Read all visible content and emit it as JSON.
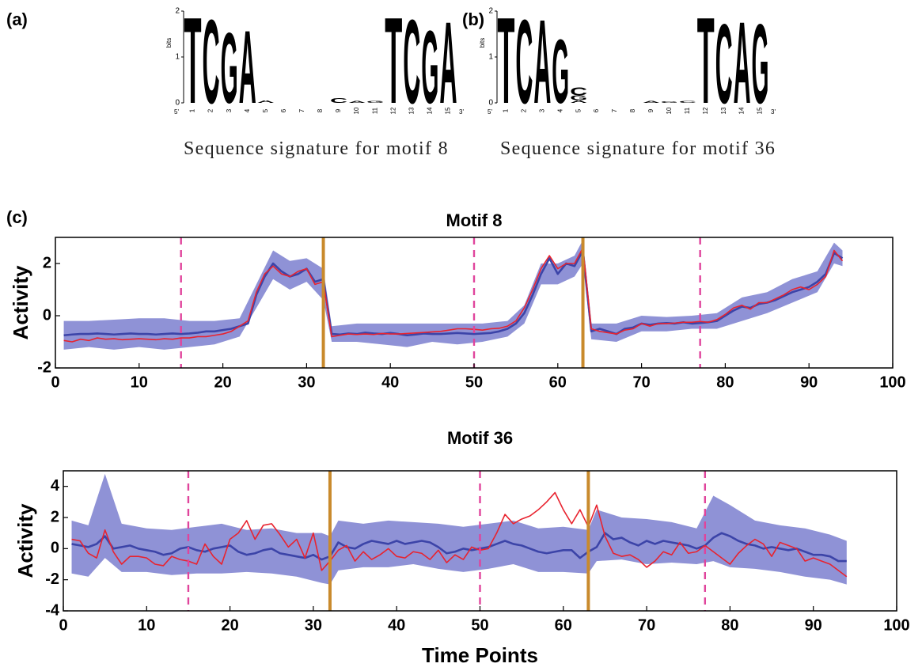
{
  "chart_data": [
    {
      "type": "logo",
      "panel_label": "(a)",
      "ylabel": "bits",
      "ylim": [
        0,
        2
      ],
      "yticks": [
        0,
        1,
        2
      ],
      "positions": [
        1,
        2,
        3,
        4,
        5,
        6,
        7,
        8,
        9,
        10,
        11,
        12,
        13,
        14,
        15
      ],
      "ends": [
        "5'",
        "3'"
      ],
      "letter_colors": {
        "A": "#1aa24a",
        "C": "#2f3b9c",
        "G": "#f5a623",
        "T": "#e8202a"
      },
      "stacks": [
        [
          {
            "letter": "T",
            "height": 1.95
          }
        ],
        [
          {
            "letter": "C",
            "height": 1.9
          }
        ],
        [
          {
            "letter": "G",
            "height": 1.6
          }
        ],
        [
          {
            "letter": "A",
            "height": 1.65
          }
        ],
        [
          {
            "letter": "A",
            "height": 0.06
          }
        ],
        [],
        [],
        [],
        [
          {
            "letter": "C",
            "height": 0.1
          }
        ],
        [
          {
            "letter": "A",
            "height": 0.05
          }
        ],
        [
          {
            "letter": "G",
            "height": 0.05
          }
        ],
        [
          {
            "letter": "T",
            "height": 1.95
          }
        ],
        [
          {
            "letter": "C",
            "height": 1.9
          }
        ],
        [
          {
            "letter": "G",
            "height": 1.65
          }
        ],
        [
          {
            "letter": "A",
            "height": 1.85
          }
        ]
      ],
      "caption": "Sequence signature for motif 8"
    },
    {
      "type": "logo",
      "panel_label": "(b)",
      "ylabel": "bits",
      "ylim": [
        0,
        2
      ],
      "yticks": [
        0,
        1,
        2
      ],
      "positions": [
        1,
        2,
        3,
        4,
        5,
        6,
        7,
        8,
        9,
        10,
        11,
        12,
        13,
        14,
        15
      ],
      "ends": [
        "5'",
        "3'"
      ],
      "letter_colors": {
        "A": "#1aa24a",
        "C": "#2f3b9c",
        "G": "#f5a623",
        "T": "#e8202a"
      },
      "stacks": [
        [
          {
            "letter": "T",
            "height": 1.95
          }
        ],
        [
          {
            "letter": "C",
            "height": 1.9
          }
        ],
        [
          {
            "letter": "A",
            "height": 1.9
          }
        ],
        [
          {
            "letter": "G",
            "height": 1.45
          }
        ],
        [
          {
            "letter": "A",
            "height": 0.06
          },
          {
            "letter": "G",
            "height": 0.1
          },
          {
            "letter": "C",
            "height": 0.18
          }
        ],
        [],
        [],
        [],
        [
          {
            "letter": "A",
            "height": 0.04
          }
        ],
        [
          {
            "letter": "G",
            "height": 0.03
          }
        ],
        [
          {
            "letter": "C",
            "height": 0.04
          }
        ],
        [
          {
            "letter": "T",
            "height": 1.95
          }
        ],
        [
          {
            "letter": "C",
            "height": 1.8
          }
        ],
        [
          {
            "letter": "A",
            "height": 1.85
          }
        ],
        [
          {
            "letter": "G",
            "height": 1.8
          }
        ]
      ],
      "caption": "Sequence signature for motif 36"
    },
    {
      "type": "line",
      "panel_label": "(c)",
      "title": "Motif 8",
      "ylabel": "Activity",
      "xlim": [
        0,
        100
      ],
      "xticks": [
        0,
        10,
        20,
        30,
        40,
        50,
        60,
        70,
        80,
        90,
        100
      ],
      "ylim": [
        -2,
        3
      ],
      "yticks": [
        -2,
        0,
        2
      ],
      "x": [
        1,
        2,
        3,
        4,
        5,
        6,
        7,
        8,
        9,
        10,
        11,
        12,
        13,
        14,
        15,
        16,
        17,
        18,
        19,
        20,
        21,
        22,
        23,
        24,
        25,
        26,
        27,
        28,
        29,
        30,
        31,
        32,
        33,
        34,
        35,
        36,
        37,
        38,
        39,
        40,
        41,
        42,
        43,
        44,
        45,
        46,
        47,
        48,
        49,
        50,
        51,
        52,
        53,
        54,
        55,
        56,
        57,
        58,
        59,
        60,
        61,
        62,
        63,
        64,
        65,
        66,
        67,
        68,
        69,
        70,
        71,
        72,
        73,
        74,
        75,
        76,
        77,
        78,
        79,
        80,
        81,
        82,
        83,
        84,
        85,
        86,
        87,
        88,
        89,
        90,
        91,
        92,
        93,
        94
      ],
      "band": {
        "color": "#8f92d6",
        "x": [
          1,
          4,
          7,
          10,
          13,
          16,
          19,
          22,
          24,
          26,
          28,
          30,
          32,
          33,
          36,
          39,
          42,
          45,
          48,
          51,
          54,
          56,
          58,
          60,
          62,
          63,
          64,
          67,
          70,
          73,
          76,
          79,
          82,
          85,
          88,
          91,
          93,
          94
        ],
        "lower": [
          -1.3,
          -1.2,
          -1.3,
          -1.2,
          -1.3,
          -1.2,
          -1.1,
          -0.8,
          0.3,
          1.4,
          1.0,
          1.3,
          0.6,
          -1.0,
          -1.0,
          -1.1,
          -1.2,
          -1.0,
          -1.1,
          -1.0,
          -0.8,
          -0.3,
          1.2,
          1.2,
          1.5,
          2.0,
          -0.9,
          -1.0,
          -0.6,
          -0.6,
          -0.5,
          -0.5,
          -0.2,
          0.1,
          0.5,
          0.9,
          2.0,
          1.9
        ],
        "upper": [
          -0.2,
          -0.2,
          -0.15,
          -0.1,
          -0.1,
          -0.2,
          -0.2,
          -0.1,
          1.2,
          2.5,
          2.1,
          2.2,
          1.8,
          -0.4,
          -0.3,
          -0.3,
          -0.3,
          -0.3,
          -0.3,
          -0.3,
          -0.2,
          0.4,
          2.0,
          2.0,
          2.3,
          2.9,
          -0.3,
          -0.3,
          0.0,
          -0.05,
          0.0,
          0.1,
          0.7,
          0.9,
          1.4,
          1.7,
          2.8,
          2.5
        ]
      },
      "series": [
        {
          "color": "#3c44a8",
          "values": [
            -0.75,
            -0.72,
            -0.7,
            -0.7,
            -0.68,
            -0.7,
            -0.72,
            -0.7,
            -0.68,
            -0.7,
            -0.7,
            -0.72,
            -0.7,
            -0.68,
            -0.7,
            -0.68,
            -0.65,
            -0.6,
            -0.6,
            -0.55,
            -0.5,
            -0.4,
            -0.3,
            0.8,
            1.5,
            2.0,
            1.7,
            1.5,
            1.6,
            1.8,
            1.3,
            1.4,
            -0.7,
            -0.72,
            -0.68,
            -0.7,
            -0.65,
            -0.68,
            -0.7,
            -0.66,
            -0.7,
            -0.75,
            -0.72,
            -0.68,
            -0.7,
            -0.7,
            -0.68,
            -0.66,
            -0.68,
            -0.7,
            -0.68,
            -0.66,
            -0.6,
            -0.5,
            -0.3,
            0.1,
            0.8,
            1.6,
            2.2,
            1.6,
            2.0,
            1.9,
            2.5,
            -0.6,
            -0.5,
            -0.6,
            -0.7,
            -0.5,
            -0.45,
            -0.3,
            -0.35,
            -0.3,
            -0.28,
            -0.3,
            -0.25,
            -0.3,
            -0.28,
            -0.25,
            -0.2,
            0.0,
            0.2,
            0.35,
            0.3,
            0.45,
            0.5,
            0.6,
            0.75,
            0.9,
            1.0,
            1.1,
            1.3,
            1.6,
            2.4,
            2.2
          ]
        },
        {
          "color": "#e8232f",
          "values": [
            -0.95,
            -1.0,
            -0.9,
            -0.95,
            -0.85,
            -0.9,
            -0.88,
            -0.92,
            -0.9,
            -0.88,
            -0.9,
            -0.92,
            -0.88,
            -0.9,
            -0.85,
            -0.85,
            -0.8,
            -0.8,
            -0.75,
            -0.7,
            -0.6,
            -0.4,
            -0.2,
            0.9,
            1.6,
            1.9,
            1.6,
            1.5,
            1.7,
            1.8,
            1.2,
            1.3,
            -0.8,
            -0.75,
            -0.7,
            -0.72,
            -0.7,
            -0.72,
            -0.68,
            -0.7,
            -0.7,
            -0.68,
            -0.66,
            -0.64,
            -0.62,
            -0.6,
            -0.55,
            -0.5,
            -0.5,
            -0.52,
            -0.55,
            -0.5,
            -0.48,
            -0.4,
            -0.2,
            0.3,
            1.0,
            1.8,
            2.3,
            1.8,
            2.0,
            2.0,
            2.6,
            -0.5,
            -0.6,
            -0.65,
            -0.7,
            -0.55,
            -0.5,
            -0.3,
            -0.4,
            -0.3,
            -0.3,
            -0.28,
            -0.25,
            -0.25,
            -0.22,
            -0.25,
            -0.15,
            0.05,
            0.3,
            0.4,
            0.25,
            0.5,
            0.5,
            0.65,
            0.8,
            1.0,
            1.1,
            1.0,
            1.2,
            1.5,
            2.5,
            2.1
          ]
        }
      ],
      "vlines": [
        {
          "x": 15,
          "style": "dashed",
          "color": "#e0449c"
        },
        {
          "x": 32,
          "style": "solid",
          "color": "#c98a2c"
        },
        {
          "x": 50,
          "style": "dashed",
          "color": "#e0449c"
        },
        {
          "x": 63,
          "style": "solid",
          "color": "#c98a2c"
        },
        {
          "x": 77,
          "style": "dashed",
          "color": "#e0449c"
        }
      ]
    },
    {
      "type": "line",
      "title": "Motif 36",
      "ylabel": "Activity",
      "xlabel": "Time Points",
      "xlim": [
        0,
        100
      ],
      "xticks": [
        0,
        10,
        20,
        30,
        40,
        50,
        60,
        70,
        80,
        90,
        100
      ],
      "ylim": [
        -4,
        5
      ],
      "yticks": [
        -4,
        -2,
        0,
        2,
        4
      ],
      "x": [
        1,
        2,
        3,
        4,
        5,
        6,
        7,
        8,
        9,
        10,
        11,
        12,
        13,
        14,
        15,
        16,
        17,
        18,
        19,
        20,
        21,
        22,
        23,
        24,
        25,
        26,
        27,
        28,
        29,
        30,
        31,
        32,
        33,
        34,
        35,
        36,
        37,
        38,
        39,
        40,
        41,
        42,
        43,
        44,
        45,
        46,
        47,
        48,
        49,
        50,
        51,
        52,
        53,
        54,
        55,
        56,
        57,
        58,
        59,
        60,
        61,
        62,
        63,
        64,
        65,
        66,
        67,
        68,
        69,
        70,
        71,
        72,
        73,
        74,
        75,
        76,
        77,
        78,
        79,
        80,
        81,
        82,
        83,
        84,
        85,
        86,
        87,
        88,
        89,
        90,
        91,
        92,
        93,
        94
      ],
      "band": {
        "color": "#8f92d6",
        "x": [
          1,
          3,
          5,
          7,
          10,
          13,
          16,
          19,
          22,
          25,
          28,
          31,
          32,
          33,
          36,
          39,
          42,
          45,
          48,
          51,
          54,
          57,
          60,
          63,
          64,
          67,
          70,
          73,
          76,
          78,
          80,
          83,
          86,
          89,
          92,
          94
        ],
        "lower": [
          -1.6,
          -1.8,
          -0.6,
          -1.5,
          -1.5,
          -1.7,
          -1.6,
          -1.6,
          -1.5,
          -1.6,
          -1.8,
          -2.2,
          -2.3,
          -1.4,
          -1.2,
          -1.2,
          -1.0,
          -1.3,
          -1.5,
          -1.3,
          -1.0,
          -1.5,
          -1.5,
          -1.6,
          -0.8,
          -0.7,
          -1.0,
          -0.9,
          -1.0,
          -0.8,
          -1.2,
          -1.3,
          -1.5,
          -1.8,
          -2.0,
          -2.3
        ],
        "upper": [
          1.8,
          1.5,
          4.8,
          1.6,
          1.3,
          1.2,
          1.4,
          1.6,
          1.2,
          1.3,
          1.0,
          1.0,
          0.8,
          1.8,
          1.6,
          1.8,
          1.7,
          1.6,
          1.4,
          1.6,
          1.8,
          1.3,
          1.4,
          1.2,
          2.5,
          2.0,
          1.9,
          1.7,
          1.3,
          3.4,
          2.8,
          1.8,
          1.5,
          1.3,
          0.9,
          0.5
        ]
      },
      "series": [
        {
          "color": "#3c44a8",
          "values": [
            0.3,
            0.2,
            0.1,
            0.3,
            0.8,
            0.0,
            0.1,
            0.2,
            0.0,
            -0.1,
            -0.2,
            -0.4,
            -0.3,
            0.0,
            0.1,
            -0.1,
            -0.2,
            0.0,
            0.1,
            0.2,
            -0.2,
            -0.4,
            -0.3,
            -0.1,
            0.0,
            -0.3,
            -0.4,
            -0.5,
            -0.6,
            -0.4,
            -0.7,
            -0.5,
            0.4,
            0.1,
            0.0,
            0.3,
            0.5,
            0.4,
            0.3,
            0.5,
            0.3,
            0.4,
            0.5,
            0.4,
            0.1,
            -0.3,
            -0.2,
            0.0,
            -0.1,
            0.0,
            0.1,
            0.3,
            0.5,
            0.3,
            0.2,
            0.0,
            -0.2,
            -0.3,
            -0.2,
            -0.1,
            -0.1,
            -0.6,
            -0.2,
            0.1,
            1.0,
            0.6,
            0.7,
            0.4,
            0.2,
            0.5,
            0.3,
            0.5,
            0.4,
            0.3,
            0.2,
            0.0,
            0.2,
            0.7,
            1.0,
            0.8,
            0.5,
            0.3,
            0.2,
            0.0,
            0.1,
            0.0,
            -0.1,
            0.0,
            -0.2,
            -0.4,
            -0.4,
            -0.5,
            -0.8,
            -0.8
          ]
        },
        {
          "color": "#e8232f",
          "values": [
            0.6,
            0.5,
            -0.3,
            -0.6,
            1.2,
            -0.2,
            -1.0,
            -0.5,
            -0.5,
            -0.6,
            -1.0,
            -1.1,
            -0.5,
            -0.7,
            -0.8,
            -1.0,
            0.3,
            -0.5,
            -1.0,
            0.6,
            1.0,
            1.8,
            0.6,
            1.5,
            1.6,
            0.9,
            0.1,
            0.6,
            -0.6,
            1.0,
            -1.4,
            -0.8,
            -0.1,
            0.2,
            -0.8,
            -0.2,
            -0.7,
            -0.4,
            0.0,
            -0.5,
            -0.6,
            -0.2,
            -0.3,
            -0.7,
            -0.1,
            -0.9,
            -0.4,
            -0.7,
            0.1,
            -0.1,
            0.0,
            1.0,
            2.2,
            1.6,
            1.9,
            2.1,
            2.5,
            3.0,
            3.6,
            2.5,
            1.6,
            2.5,
            1.4,
            2.8,
            0.8,
            -0.3,
            -0.5,
            -0.4,
            -0.7,
            -1.2,
            -0.8,
            -0.2,
            -0.4,
            0.4,
            -0.3,
            -0.2,
            0.2,
            -0.2,
            -0.6,
            -1.0,
            -0.3,
            0.2,
            0.6,
            0.3,
            -0.5,
            0.4,
            0.2,
            0.0,
            -0.8,
            -0.6,
            -0.8,
            -1.0,
            -1.4,
            -1.8
          ]
        }
      ],
      "vlines": [
        {
          "x": 15,
          "style": "dashed",
          "color": "#e0449c"
        },
        {
          "x": 32,
          "style": "solid",
          "color": "#c98a2c"
        },
        {
          "x": 50,
          "style": "dashed",
          "color": "#e0449c"
        },
        {
          "x": 63,
          "style": "solid",
          "color": "#c98a2c"
        },
        {
          "x": 77,
          "style": "dashed",
          "color": "#e0449c"
        }
      ]
    }
  ]
}
